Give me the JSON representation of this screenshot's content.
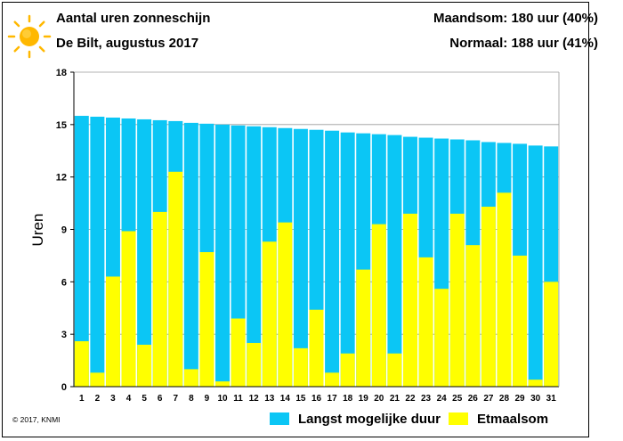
{
  "header": {
    "title": "Aantal uren zonneschijn",
    "subtitle": "De Bilt, augustus 2017",
    "month_total": "Maandsom: 180 uur (40%)",
    "normal": "Normaal: 188 uur (41%)"
  },
  "copyright": "© 2017, KNMI",
  "legend": {
    "max_label": "Langst mogelijke duur",
    "sum_label": "Etmaalsom"
  },
  "colors": {
    "max": "#0bc6f5",
    "sum": "#ffff00",
    "sun": "#ffb800"
  },
  "chart_data": {
    "type": "bar",
    "title": "Aantal uren zonneschijn",
    "ylabel": "Uren",
    "xlabel": "",
    "ylim": [
      0,
      18
    ],
    "yticks": [
      0,
      3,
      6,
      9,
      12,
      15,
      18
    ],
    "grid": true,
    "legend_position": "bottom",
    "categories": [
      "1",
      "2",
      "3",
      "4",
      "5",
      "6",
      "7",
      "8",
      "9",
      "10",
      "11",
      "12",
      "13",
      "14",
      "15",
      "16",
      "17",
      "18",
      "19",
      "20",
      "21",
      "22",
      "23",
      "24",
      "25",
      "26",
      "27",
      "28",
      "29",
      "30",
      "31"
    ],
    "series": [
      {
        "name": "Langst mogelijke duur",
        "values": [
          15.5,
          15.45,
          15.4,
          15.35,
          15.3,
          15.25,
          15.2,
          15.1,
          15.05,
          15.0,
          14.95,
          14.9,
          14.85,
          14.8,
          14.75,
          14.7,
          14.65,
          14.55,
          14.5,
          14.45,
          14.4,
          14.3,
          14.25,
          14.2,
          14.15,
          14.1,
          14.0,
          13.95,
          13.9,
          13.8,
          13.75
        ]
      },
      {
        "name": "Etmaalsom",
        "values": [
          2.6,
          0.8,
          6.3,
          8.9,
          2.4,
          10.0,
          12.3,
          1.0,
          7.7,
          0.3,
          3.9,
          2.5,
          8.3,
          9.4,
          2.2,
          4.4,
          0.8,
          1.9,
          6.7,
          9.3,
          1.9,
          9.9,
          7.4,
          5.6,
          9.9,
          8.1,
          10.3,
          11.1,
          7.5,
          0.4,
          6.0
        ]
      }
    ]
  }
}
